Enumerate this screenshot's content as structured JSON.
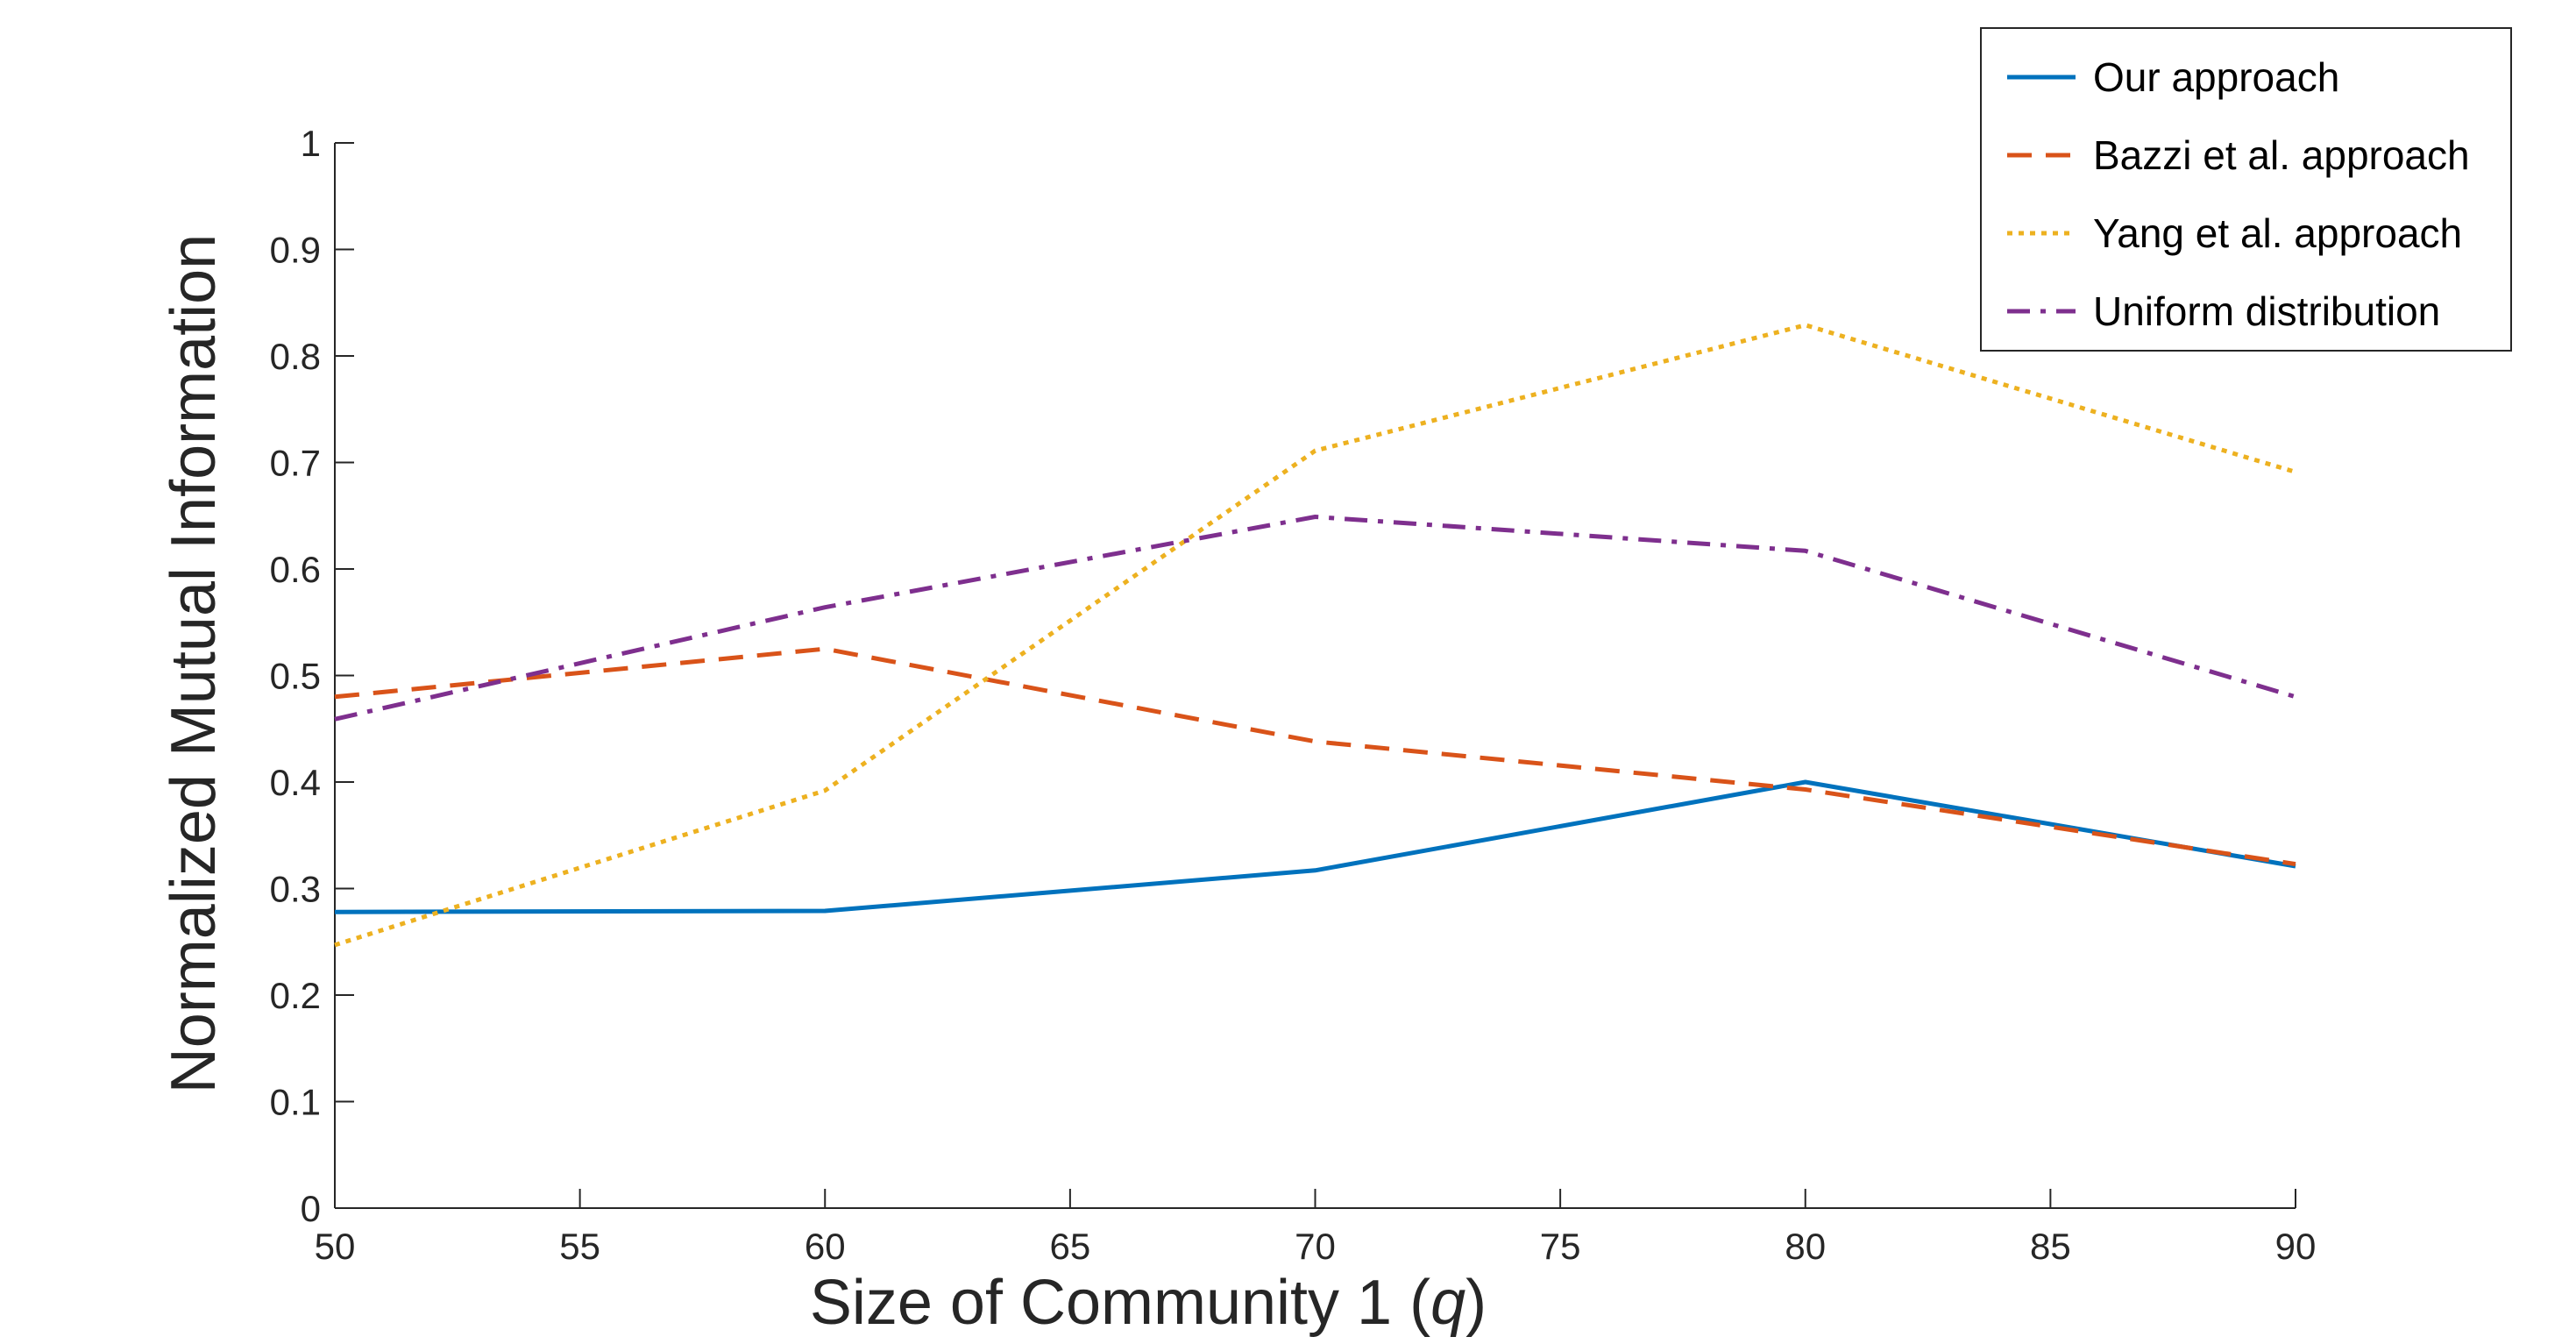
{
  "chart_data": {
    "type": "line",
    "x": [
      50,
      60,
      70,
      80,
      90
    ],
    "xlabel": "Size of Community 1 (",
    "xlabel_var": "q",
    "xlabel_end": ")",
    "ylabel": "Normalized Mutual Information",
    "xlim": [
      50,
      90
    ],
    "ylim": [
      0,
      1
    ],
    "xticks": [
      "50",
      "55",
      "60",
      "65",
      "70",
      "75",
      "80",
      "85",
      "90"
    ],
    "yticks": [
      "0",
      "0.1",
      "0.2",
      "0.3",
      "0.4",
      "0.5",
      "0.6",
      "0.7",
      "0.8",
      "0.9",
      "1"
    ],
    "grid": false,
    "legend_position": "top-right",
    "series": [
      {
        "name": "Our approach",
        "values": [
          0.278,
          0.279,
          0.317,
          0.4,
          0.321
        ],
        "color": "#0072BD",
        "style": "solid"
      },
      {
        "name": "Bazzi et al. approach",
        "values": [
          0.48,
          0.525,
          0.438,
          0.393,
          0.323
        ],
        "color": "#D95319",
        "style": "dashed"
      },
      {
        "name": "Yang et al. approach",
        "values": [
          0.247,
          0.392,
          0.711,
          0.829,
          0.691
        ],
        "color": "#EDB120",
        "style": "dotted"
      },
      {
        "name": "Uniform distribution",
        "values": [
          0.459,
          0.564,
          0.649,
          0.617,
          0.48
        ],
        "color": "#7E2F8E",
        "style": "dashdot"
      }
    ]
  }
}
